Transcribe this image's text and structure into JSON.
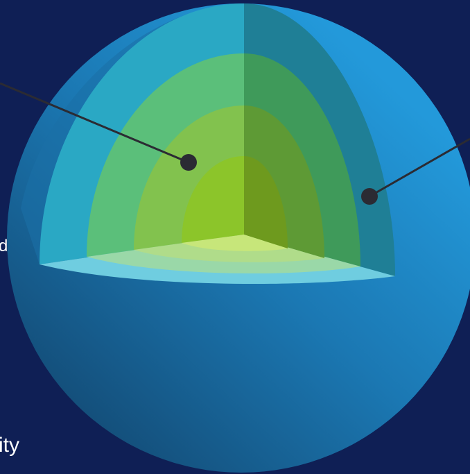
{
  "labels": [
    "d",
    "ity"
  ]
}
